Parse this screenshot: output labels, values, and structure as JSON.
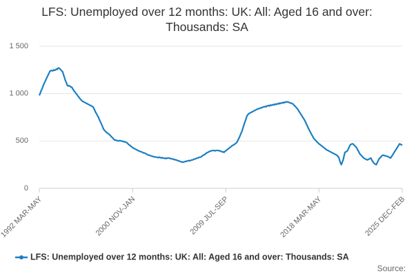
{
  "chart_data": {
    "type": "line",
    "title": "LFS: Unemployed over 12 months: UK: All: Aged 16 and over: Thousands: SA",
    "source": "Source:",
    "categories": [
      "1992 MAR-MAY",
      null,
      null,
      null,
      null,
      null,
      null,
      null,
      null,
      null,
      null,
      null,
      null,
      null,
      null,
      null,
      null,
      null,
      null,
      null,
      null,
      null,
      null,
      null,
      null,
      null,
      null,
      null,
      null,
      null,
      null,
      null,
      null,
      null,
      null,
      null,
      null,
      null,
      null,
      null,
      null,
      null,
      null,
      null,
      null,
      null,
      null,
      null,
      null,
      null,
      null,
      null,
      null,
      null,
      null,
      null,
      null,
      null,
      null,
      null,
      null,
      null,
      null,
      null,
      null,
      null,
      null,
      null,
      null,
      null,
      null,
      null,
      null,
      null,
      null,
      null,
      null,
      null,
      null,
      null,
      null,
      null,
      null,
      null,
      null,
      null,
      null,
      null,
      null,
      null,
      null,
      null,
      null,
      null,
      null,
      null,
      null,
      null,
      null,
      null,
      null,
      null,
      null,
      null,
      "2000 NOV-JAN",
      null,
      null,
      null,
      null,
      null,
      null,
      null,
      null,
      null,
      null,
      null,
      null,
      null,
      null,
      null,
      null,
      null,
      null,
      null,
      null,
      null,
      null,
      null,
      null,
      null,
      null,
      null,
      null,
      null,
      null,
      null,
      null,
      null,
      null,
      null,
      null,
      null,
      null,
      null,
      null,
      null,
      null,
      null,
      null,
      null,
      null,
      null,
      null,
      null,
      null,
      null,
      null,
      null,
      null,
      null,
      null,
      null,
      null,
      null,
      null,
      null,
      null,
      null,
      null,
      null,
      null,
      null,
      null,
      null,
      null,
      null,
      null,
      null,
      null,
      null,
      null,
      null,
      null,
      null,
      null,
      null,
      null,
      null,
      null,
      null,
      null,
      null,
      null,
      null,
      null,
      null,
      null,
      null,
      null,
      null,
      null,
      null,
      null,
      null,
      null,
      null,
      null,
      null,
      "2009 JUL-SEP",
      null,
      null,
      null,
      null,
      null,
      null,
      null,
      null,
      null,
      null,
      null,
      null,
      null,
      null,
      null,
      null,
      null,
      null,
      null,
      null,
      null,
      null,
      null,
      null,
      null,
      null,
      null,
      null,
      null,
      null,
      null,
      null,
      null,
      null,
      null,
      null,
      null,
      null,
      null,
      null,
      null,
      null,
      null,
      null,
      null,
      null,
      null,
      null,
      null,
      null,
      null,
      null,
      null,
      null,
      null,
      null,
      null,
      null,
      null,
      null,
      null,
      null,
      null,
      null,
      null,
      null,
      null,
      null,
      null,
      null,
      null,
      null,
      null,
      null,
      null,
      null,
      null,
      null,
      null,
      null,
      null,
      null,
      null,
      null,
      null,
      null,
      null,
      null,
      null,
      null,
      null,
      null,
      null,
      null,
      null,
      null,
      null,
      null,
      null,
      null,
      null,
      null,
      null,
      "2018 MAR-MAY",
      null,
      null,
      null,
      null,
      null,
      null,
      null,
      null,
      null,
      null,
      null,
      null,
      null,
      null,
      null,
      null,
      null,
      null,
      null,
      null,
      null,
      null,
      null,
      null,
      null,
      null,
      null,
      null,
      null,
      null,
      null,
      null,
      null,
      null,
      null,
      null,
      null,
      null,
      null,
      null,
      null,
      null,
      null,
      null,
      null,
      null,
      null,
      null,
      null,
      null,
      null,
      null,
      null,
      null,
      null,
      null,
      null,
      null,
      null,
      null,
      null,
      null,
      null,
      null,
      null,
      null,
      null,
      null,
      null,
      null,
      null,
      null,
      null,
      null,
      null,
      null,
      null,
      null,
      null,
      null,
      null,
      null,
      null,
      null,
      null,
      null,
      null,
      null,
      null,
      null,
      null,
      null,
      "2025 DEC-FEB"
    ],
    "series": [
      {
        "name": "LFS: Unemployed over 12 months: UK: All: Aged 16 and over: Thousands: SA",
        "color": "#1a7fc1",
        "values": [
          980,
          1005,
          1030,
          1050,
          1075,
          1100,
          1120,
          1140,
          1160,
          1180,
          1200,
          1220,
          1240,
          1240,
          1245,
          1240,
          1250,
          1245,
          1250,
          1260,
          1255,
          1270,
          1270,
          1260,
          1250,
          1240,
          1230,
          1200,
          1170,
          1140,
          1120,
          1090,
          1080,
          1085,
          1080,
          1070,
          1070,
          1055,
          1040,
          1025,
          1015,
          1000,
          990,
          975,
          965,
          950,
          940,
          930,
          920,
          915,
          910,
          905,
          900,
          895,
          890,
          885,
          880,
          875,
          870,
          865,
          860,
          840,
          820,
          800,
          785,
          765,
          750,
          725,
          705,
          685,
          665,
          640,
          620,
          610,
          600,
          590,
          585,
          575,
          570,
          560,
          550,
          540,
          530,
          520,
          510,
          510,
          505,
          505,
          500,
          500,
          505,
          500,
          500,
          495,
          495,
          490,
          490,
          485,
          480,
          470,
          460,
          455,
          445,
          440,
          430,
          425,
          420,
          415,
          410,
          405,
          400,
          395,
          390,
          390,
          385,
          380,
          375,
          375,
          370,
          365,
          360,
          355,
          350,
          350,
          345,
          340,
          340,
          335,
          335,
          330,
          330,
          330,
          325,
          325,
          330,
          325,
          320,
          325,
          320,
          320,
          315,
          320,
          315,
          320,
          320,
          320,
          315,
          315,
          310,
          310,
          305,
          305,
          300,
          300,
          295,
          290,
          290,
          285,
          280,
          280,
          275,
          280,
          280,
          285,
          285,
          290,
          290,
          295,
          290,
          295,
          300,
          300,
          305,
          310,
          310,
          315,
          320,
          320,
          325,
          330,
          330,
          335,
          345,
          350,
          355,
          360,
          370,
          375,
          380,
          385,
          390,
          395,
          395,
          400,
          400,
          400,
          395,
          400,
          400,
          400,
          400,
          395,
          395,
          390,
          385,
          385,
          380,
          390,
          395,
          405,
          410,
          420,
          425,
          435,
          440,
          450,
          455,
          460,
          465,
          475,
          480,
          495,
          515,
          535,
          555,
          580,
          600,
          630,
          660,
          690,
          715,
          745,
          770,
          780,
          790,
          795,
          800,
          805,
          810,
          815,
          820,
          825,
          830,
          835,
          840,
          840,
          845,
          850,
          850,
          855,
          860,
          860,
          865,
          860,
          870,
          870,
          875,
          870,
          880,
          875,
          880,
          885,
          880,
          890,
          885,
          890,
          895,
          890,
          900,
          895,
          900,
          905,
          900,
          910,
          905,
          910,
          915,
          910,
          910,
          905,
          900,
          900,
          895,
          890,
          880,
          870,
          860,
          850,
          840,
          825,
          810,
          795,
          780,
          765,
          750,
          735,
          720,
          700,
          680,
          660,
          640,
          620,
          600,
          585,
          565,
          550,
          530,
          520,
          510,
          500,
          490,
          480,
          470,
          465,
          455,
          450,
          440,
          435,
          425,
          420,
          410,
          405,
          400,
          395,
          390,
          385,
          380,
          375,
          370,
          365,
          360,
          355,
          350,
          340,
          330,
          300,
          270,
          250,
          275,
          300,
          340,
          380,
          385,
          390,
          400,
          420,
          440,
          460,
          465,
          470,
          470,
          460,
          450,
          440,
          430,
          410,
          395,
          375,
          360,
          350,
          340,
          330,
          320,
          315,
          310,
          305,
          300,
          305,
          310,
          315,
          320,
          300,
          285,
          270,
          260,
          255,
          250,
          270,
          290,
          310,
          320,
          330,
          340,
          350,
          350,
          345,
          345,
          340,
          340,
          335,
          330,
          325,
          320,
          335,
          350,
          365,
          380,
          395,
          410,
          425,
          440,
          455,
          470,
          465,
          460,
          455
        ]
      }
    ],
    "ylim": [
      0,
      1500
    ],
    "yticks": [
      0,
      500,
      {
        "value": 1000,
        "label": "1 000"
      },
      {
        "value": 1500,
        "label": "1 500"
      }
    ],
    "grid": true
  }
}
